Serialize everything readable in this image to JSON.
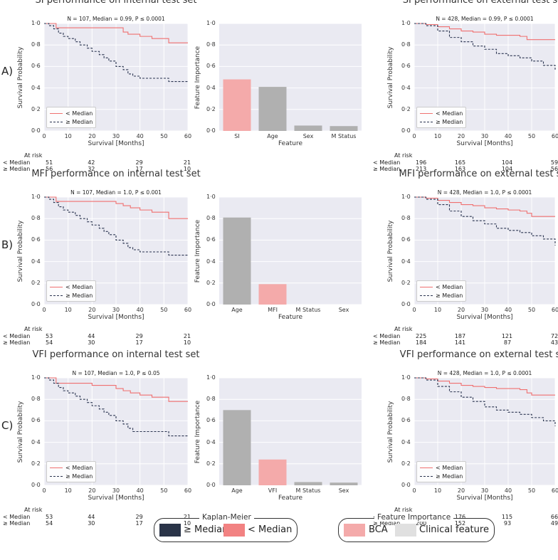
{
  "rows": [
    {
      "label": "A)",
      "internal": {
        "title": "SI performance on internal test set",
        "note": "N = 107, Median = 0.99, P ≤ 0.0001",
        "ylabel": "Survival Probability",
        "xlabel": "Survival [Months]",
        "x_ticks": [
          "0",
          "10",
          "20",
          "30",
          "40",
          "50",
          "60"
        ],
        "y_ticks": [
          "0·0",
          "0·2",
          "0·4",
          "0·6",
          "0·8",
          "1·0"
        ],
        "legend": [
          "< Median",
          "≥ Median"
        ],
        "risk_title": "At risk",
        "risk": [
          {
            "label": "< Median",
            "values": [
              "51",
              "42",
              "29",
              "21"
            ]
          },
          {
            "label": "≥ Median",
            "values": [
              "56",
              "32",
              "17",
              "10"
            ]
          }
        ]
      },
      "feature": {
        "ylabel": "Feature Importance",
        "xlabel": "Feature",
        "y_ticks": [
          "0·0",
          "0·2",
          "0·4",
          "0·6",
          "0·8",
          "1·0"
        ]
      },
      "external": {
        "title": "SI performance on external test set",
        "note": "N = 428, Median = 0.99, P ≤ 0.0001",
        "ylabel": "Survival Probability",
        "xlabel": "Survival [Months]",
        "x_ticks": [
          "0",
          "10",
          "20",
          "30",
          "40",
          "50",
          "60"
        ],
        "y_ticks": [
          "0·0",
          "0·2",
          "0·4",
          "0·6",
          "0·8",
          "1·0"
        ],
        "legend": [
          "< Median",
          "≥ Median"
        ],
        "risk_title": "At risk",
        "risk": [
          {
            "label": "< Median",
            "values": [
              "196",
              "165",
              "104",
              "59"
            ]
          },
          {
            "label": "≥ Median",
            "values": [
              "213",
              "163",
              "104",
              "56"
            ]
          }
        ]
      }
    },
    {
      "label": "B)",
      "internal": {
        "title": "MFI performance on internal test set",
        "note": "N = 107, Median = 1.0, P ≤ 0.001",
        "ylabel": "Survival Probability",
        "xlabel": "Survival [Months]",
        "x_ticks": [
          "0",
          "10",
          "20",
          "30",
          "40",
          "50",
          "60"
        ],
        "y_ticks": [
          "0·0",
          "0·2",
          "0·4",
          "0·6",
          "0·8",
          "1·0"
        ],
        "legend": [
          "< Median",
          "≥ Median"
        ],
        "risk_title": "At risk",
        "risk": [
          {
            "label": "< Median",
            "values": [
              "53",
              "44",
              "29",
              "21"
            ]
          },
          {
            "label": "≥ Median",
            "values": [
              "54",
              "30",
              "17",
              "10"
            ]
          }
        ]
      },
      "feature": {
        "ylabel": "Feature Importance",
        "xlabel": "Feature",
        "y_ticks": [
          "0·0",
          "0·2",
          "0·4",
          "0·6",
          "0·8",
          "1·0"
        ]
      },
      "external": {
        "title": "MFI performance on external test set",
        "note": "N = 428, Median = 1.0, P ≤ 0.0001",
        "ylabel": "Survival Probability",
        "xlabel": "Survival [Months]",
        "x_ticks": [
          "0",
          "10",
          "20",
          "30",
          "40",
          "50",
          "60"
        ],
        "y_ticks": [
          "0·0",
          "0·2",
          "0·4",
          "0·6",
          "0·8",
          "1·0"
        ],
        "legend": [
          "< Median",
          "≥ Median"
        ],
        "risk_title": "At risk",
        "risk": [
          {
            "label": "< Median",
            "values": [
              "225",
              "187",
              "121",
              "72"
            ]
          },
          {
            "label": "≥ Median",
            "values": [
              "184",
              "141",
              "87",
              "43"
            ]
          }
        ]
      }
    },
    {
      "label": "C)",
      "internal": {
        "title": "VFI performance on internal test set",
        "note": "N = 107, Median = 1.0, P ≤ 0.05",
        "ylabel": "Survival Probability",
        "xlabel": "Survival [Months]",
        "x_ticks": [
          "0",
          "10",
          "20",
          "30",
          "40",
          "50",
          "60"
        ],
        "y_ticks": [
          "0·0",
          "0·2",
          "0·4",
          "0·6",
          "0·8",
          "1·0"
        ],
        "legend": [
          "< Median",
          "≥ Median"
        ],
        "risk_title": "At risk",
        "risk": [
          {
            "label": "< Median",
            "values": [
              "53",
              "44",
              "29",
              "21"
            ]
          },
          {
            "label": "≥ Median",
            "values": [
              "54",
              "30",
              "17",
              "10"
            ]
          }
        ]
      },
      "feature": {
        "ylabel": "Feature Importance",
        "xlabel": "Feature",
        "y_ticks": [
          "0·0",
          "0·2",
          "0·4",
          "0·6",
          "0·8",
          "1·0"
        ]
      },
      "external": {
        "title": "VFI performance on external test set",
        "note": "N = 428, Median = 1.0, P ≤ 0.0001",
        "ylabel": "Survival Probability",
        "xlabel": "Survival [Months]",
        "x_ticks": [
          "0",
          "10",
          "20",
          "30",
          "40",
          "50",
          "60"
        ],
        "y_ticks": [
          "0·0",
          "0·2",
          "0·4",
          "0·6",
          "0·8",
          "1·0"
        ],
        "legend": [
          "< Median",
          "≥ Median"
        ],
        "risk_title": "At risk",
        "risk": [
          {
            "label": "< Median",
            "values": [
              "209",
              "176",
              "115",
              "66"
            ]
          },
          {
            "label": "≥ Median",
            "values": [
              "200",
              "152",
              "93",
              "49"
            ]
          }
        ]
      }
    }
  ],
  "legends": {
    "km_title": "Kaplan-Meier",
    "km_items": [
      "≥ Median",
      "< Median"
    ],
    "fi_title": "Feature Importance",
    "fi_items": [
      "BCA",
      "Clinical feature"
    ]
  },
  "colors": {
    "below_median": "#f07070",
    "above_median": "#2a3450",
    "bca": "#f4aaaa",
    "clinical": "#b0b0b0",
    "clinical_swatch": "#e0e0e0",
    "km_dark_swatch": "#2a3448",
    "km_red_swatch": "#f28282"
  },
  "chart_data": [
    {
      "type": "line",
      "panel": "A-internal",
      "title": "SI performance on internal test set",
      "xlabel": "Survival [Months]",
      "ylabel": "Survival Probability",
      "xlim": [
        0,
        60
      ],
      "ylim": [
        0,
        1
      ],
      "series": [
        {
          "name": "< Median",
          "x": [
            0,
            5,
            10,
            20,
            30,
            33,
            35,
            40,
            45,
            50,
            52,
            60
          ],
          "y": [
            1.0,
            0.96,
            0.96,
            0.96,
            0.96,
            0.92,
            0.9,
            0.88,
            0.86,
            0.86,
            0.82,
            0.82
          ]
        },
        {
          "name": "≥ Median",
          "x": [
            0,
            2,
            4,
            6,
            8,
            10,
            13,
            15,
            18,
            20,
            23,
            25,
            27,
            30,
            33,
            35,
            37,
            40,
            45,
            50,
            52,
            60
          ],
          "y": [
            1.0,
            0.98,
            0.95,
            0.91,
            0.88,
            0.86,
            0.83,
            0.8,
            0.77,
            0.74,
            0.71,
            0.68,
            0.65,
            0.6,
            0.57,
            0.53,
            0.51,
            0.49,
            0.49,
            0.49,
            0.46,
            0.46
          ]
        }
      ]
    },
    {
      "type": "bar",
      "panel": "A-feature",
      "xlabel": "Feature",
      "ylabel": "Feature Importance",
      "ylim": [
        0,
        1
      ],
      "categories": [
        "SI",
        "Age",
        "Sex",
        "M Status"
      ],
      "values": [
        0.48,
        0.41,
        0.05,
        0.045
      ],
      "highlight": "SI"
    },
    {
      "type": "line",
      "panel": "A-external",
      "title": "SI performance on external test set",
      "xlabel": "Survival [Months]",
      "ylabel": "Survival Probability",
      "xlim": [
        0,
        60
      ],
      "ylim": [
        0,
        1
      ],
      "series": [
        {
          "name": "< Median",
          "x": [
            0,
            5,
            10,
            15,
            20,
            25,
            30,
            35,
            40,
            45,
            48,
            50,
            55,
            60
          ],
          "y": [
            1.0,
            0.99,
            0.97,
            0.95,
            0.93,
            0.92,
            0.9,
            0.89,
            0.89,
            0.88,
            0.85,
            0.85,
            0.85,
            0.85
          ]
        },
        {
          "name": "≥ Median",
          "x": [
            0,
            5,
            10,
            15,
            20,
            25,
            30,
            35,
            40,
            45,
            50,
            55,
            60
          ],
          "y": [
            1.0,
            0.98,
            0.93,
            0.87,
            0.83,
            0.79,
            0.76,
            0.72,
            0.7,
            0.68,
            0.65,
            0.61,
            0.57
          ]
        }
      ]
    },
    {
      "type": "line",
      "panel": "B-internal",
      "title": "MFI performance on internal test set",
      "xlabel": "Survival [Months]",
      "ylabel": "Survival Probability",
      "xlim": [
        0,
        60
      ],
      "ylim": [
        0,
        1
      ],
      "series": [
        {
          "name": "< Median",
          "x": [
            0,
            5,
            10,
            20,
            30,
            33,
            36,
            40,
            45,
            50,
            52,
            60
          ],
          "y": [
            1.0,
            0.96,
            0.96,
            0.96,
            0.94,
            0.92,
            0.9,
            0.88,
            0.86,
            0.86,
            0.8,
            0.8
          ]
        },
        {
          "name": "≥ Median",
          "x": [
            0,
            2,
            4,
            6,
            8,
            10,
            13,
            15,
            18,
            20,
            23,
            25,
            27,
            30,
            33,
            35,
            37,
            40,
            45,
            50,
            52,
            60
          ],
          "y": [
            1.0,
            0.98,
            0.95,
            0.91,
            0.88,
            0.86,
            0.83,
            0.8,
            0.77,
            0.74,
            0.71,
            0.68,
            0.65,
            0.6,
            0.57,
            0.53,
            0.51,
            0.49,
            0.49,
            0.49,
            0.46,
            0.46
          ]
        }
      ]
    },
    {
      "type": "bar",
      "panel": "B-feature",
      "xlabel": "Feature",
      "ylabel": "Feature Importance",
      "ylim": [
        0,
        1
      ],
      "categories": [
        "Age",
        "MFI",
        "M Status",
        "Sex"
      ],
      "values": [
        0.81,
        0.19,
        0.0,
        0.0
      ],
      "highlight": "MFI"
    },
    {
      "type": "line",
      "panel": "B-external",
      "title": "MFI performance on external test set",
      "xlabel": "Survival [Months]",
      "ylabel": "Survival Probability",
      "xlim": [
        0,
        60
      ],
      "ylim": [
        0,
        1
      ],
      "series": [
        {
          "name": "< Median",
          "x": [
            0,
            5,
            10,
            15,
            20,
            25,
            30,
            35,
            40,
            45,
            48,
            50,
            55,
            60
          ],
          "y": [
            1.0,
            0.99,
            0.97,
            0.95,
            0.93,
            0.92,
            0.9,
            0.89,
            0.88,
            0.87,
            0.85,
            0.82,
            0.82,
            0.82
          ]
        },
        {
          "name": "≥ Median",
          "x": [
            0,
            5,
            10,
            15,
            20,
            25,
            30,
            35,
            40,
            45,
            50,
            55,
            60
          ],
          "y": [
            1.0,
            0.98,
            0.93,
            0.87,
            0.82,
            0.78,
            0.75,
            0.71,
            0.69,
            0.67,
            0.64,
            0.61,
            0.55
          ]
        }
      ]
    },
    {
      "type": "line",
      "panel": "C-internal",
      "title": "VFI performance on internal test set",
      "xlabel": "Survival [Months]",
      "ylabel": "Survival Probability",
      "xlim": [
        0,
        60
      ],
      "ylim": [
        0,
        1
      ],
      "series": [
        {
          "name": "< Median",
          "x": [
            0,
            5,
            10,
            20,
            30,
            33,
            36,
            40,
            45,
            50,
            52,
            60
          ],
          "y": [
            1.0,
            0.95,
            0.95,
            0.93,
            0.9,
            0.88,
            0.86,
            0.84,
            0.82,
            0.82,
            0.78,
            0.78
          ]
        },
        {
          "name": "≥ Median",
          "x": [
            0,
            2,
            4,
            6,
            8,
            10,
            13,
            15,
            18,
            20,
            23,
            25,
            27,
            30,
            33,
            35,
            37,
            40,
            45,
            50,
            52,
            60
          ],
          "y": [
            1.0,
            0.98,
            0.95,
            0.91,
            0.88,
            0.86,
            0.83,
            0.8,
            0.77,
            0.74,
            0.71,
            0.68,
            0.65,
            0.6,
            0.57,
            0.53,
            0.5,
            0.5,
            0.5,
            0.5,
            0.46,
            0.46
          ]
        }
      ]
    },
    {
      "type": "bar",
      "panel": "C-feature",
      "xlabel": "Feature",
      "ylabel": "Feature Importance",
      "ylim": [
        0,
        1
      ],
      "categories": [
        "Age",
        "VFI",
        "M Status",
        "Sex"
      ],
      "values": [
        0.7,
        0.24,
        0.03,
        0.025
      ],
      "highlight": "VFI"
    },
    {
      "type": "line",
      "panel": "C-external",
      "title": "VFI performance on external test set",
      "xlabel": "Survival [Months]",
      "ylabel": "Survival Probability",
      "xlim": [
        0,
        60
      ],
      "ylim": [
        0,
        1
      ],
      "series": [
        {
          "name": "< Median",
          "x": [
            0,
            5,
            10,
            15,
            20,
            25,
            30,
            35,
            40,
            45,
            48,
            50,
            55,
            60
          ],
          "y": [
            1.0,
            0.99,
            0.97,
            0.95,
            0.93,
            0.92,
            0.91,
            0.9,
            0.9,
            0.89,
            0.86,
            0.84,
            0.84,
            0.84
          ]
        },
        {
          "name": "≥ Median",
          "x": [
            0,
            5,
            10,
            15,
            20,
            25,
            30,
            35,
            40,
            45,
            50,
            55,
            60
          ],
          "y": [
            1.0,
            0.98,
            0.92,
            0.87,
            0.82,
            0.78,
            0.73,
            0.7,
            0.68,
            0.66,
            0.63,
            0.6,
            0.55
          ]
        }
      ]
    }
  ]
}
